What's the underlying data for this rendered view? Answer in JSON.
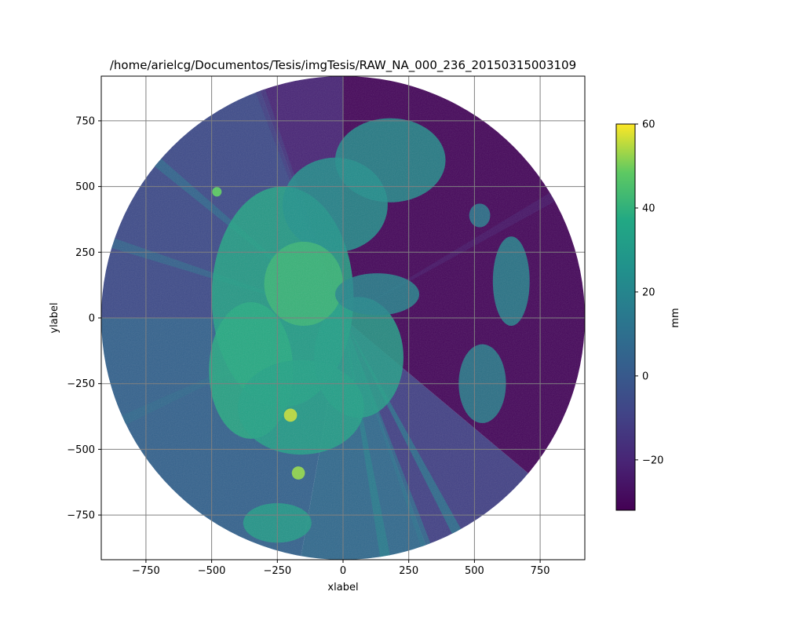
{
  "chart_data": {
    "type": "heatmap",
    "title": "/home/arielcg/Documentos/Tesis/imgTesis/RAW_NA_000_236_20150315003109",
    "xlabel": "xlabel",
    "ylabel": "ylabel",
    "xlim": [
      -920,
      920
    ],
    "ylim": [
      -920,
      920
    ],
    "xticks": [
      -750,
      -500,
      -250,
      0,
      250,
      500,
      750
    ],
    "xtick_labels": [
      "−750",
      "−500",
      "−250",
      "0",
      "250",
      "500",
      "750"
    ],
    "yticks": [
      -750,
      -500,
      -250,
      0,
      250,
      500,
      750
    ],
    "ytick_labels": [
      "−750",
      "−500",
      "−250",
      "0",
      "250",
      "500",
      "750"
    ],
    "grid": true,
    "grid_color": "#808080",
    "radar_range": 920,
    "colorbar": {
      "label": "mm",
      "vmin": -32,
      "vmax": 60,
      "ticks": [
        -20,
        0,
        20,
        40,
        60
      ],
      "tick_labels": [
        "−20",
        "0",
        "20",
        "40",
        "60"
      ],
      "colormap": "viridis"
    },
    "echoes": [
      {
        "cx": -230,
        "cy": 80,
        "rx": 270,
        "ry": 420,
        "value": 36
      },
      {
        "cx": -350,
        "cy": -200,
        "rx": 160,
        "ry": 260,
        "value": 38
      },
      {
        "cx": -160,
        "cy": -340,
        "rx": 240,
        "ry": 180,
        "value": 34
      },
      {
        "cx": -30,
        "cy": 430,
        "rx": 200,
        "ry": 180,
        "value": 26
      },
      {
        "cx": 180,
        "cy": 600,
        "rx": 210,
        "ry": 160,
        "value": 24
      },
      {
        "cx": 60,
        "cy": -150,
        "rx": 170,
        "ry": 230,
        "value": 33
      },
      {
        "cx": -150,
        "cy": 130,
        "rx": 150,
        "ry": 160,
        "value": 42
      },
      {
        "cx": -250,
        "cy": -780,
        "rx": 130,
        "ry": 75,
        "value": 32
      },
      {
        "cx": 130,
        "cy": 90,
        "rx": 160,
        "ry": 80,
        "value": 20
      },
      {
        "cx": 640,
        "cy": 140,
        "rx": 70,
        "ry": 170,
        "value": 20
      },
      {
        "cx": 530,
        "cy": -250,
        "rx": 90,
        "ry": 150,
        "value": 18
      },
      {
        "cx": 520,
        "cy": 390,
        "rx": 40,
        "ry": 45,
        "value": 16
      }
    ],
    "hotspots": [
      {
        "cx": -200,
        "cy": -370,
        "r": 25,
        "value": 55
      },
      {
        "cx": -170,
        "cy": -590,
        "r": 25,
        "value": 52
      },
      {
        "cx": -480,
        "cy": 480,
        "r": 18,
        "value": 48
      }
    ],
    "background": [
      {
        "from_deg": 0,
        "to_deg": 90,
        "value": -30
      },
      {
        "from_deg": 90,
        "to_deg": 110,
        "value": -20
      },
      {
        "from_deg": 110,
        "to_deg": 180,
        "value": -6
      },
      {
        "from_deg": 180,
        "to_deg": 260,
        "value": 4
      },
      {
        "from_deg": 260,
        "to_deg": 290,
        "value": 7
      },
      {
        "from_deg": 290,
        "to_deg": 320,
        "value": -10
      },
      {
        "from_deg": 320,
        "to_deg": 360,
        "value": -30
      }
    ],
    "beams": [
      {
        "angle_deg": 140,
        "value": 10
      },
      {
        "angle_deg": 162,
        "value": 8
      },
      {
        "angle_deg": 205,
        "value": 8
      },
      {
        "angle_deg": 280,
        "value": 18
      },
      {
        "angle_deg": 290,
        "value": 12
      },
      {
        "angle_deg": 298,
        "value": 16
      },
      {
        "angle_deg": 30,
        "value": -24
      },
      {
        "angle_deg": 110,
        "value": -12
      }
    ]
  }
}
